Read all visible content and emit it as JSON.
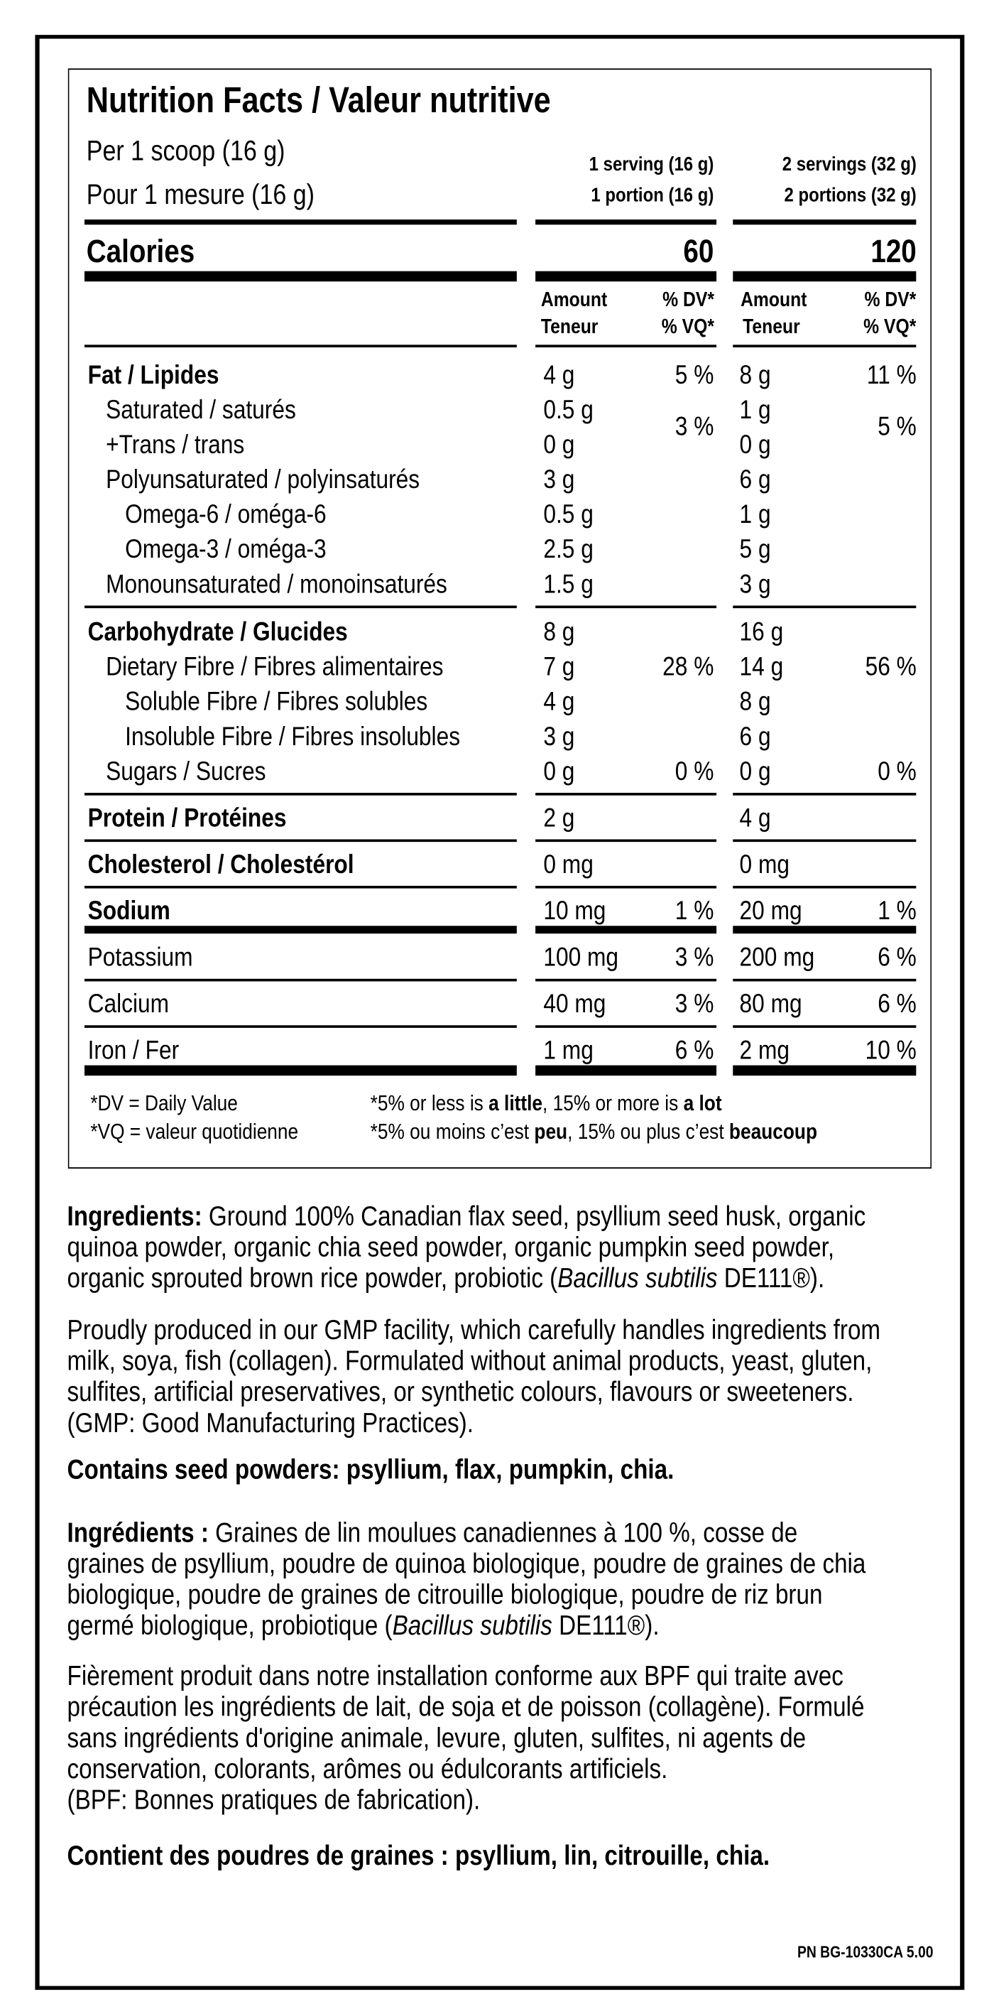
{
  "nutrition_facts": {
    "title": "Nutrition Facts / Valeur nutritive",
    "serving_size_en": "Per 1 scoop (16 g)",
    "serving_size_fr": "Pour 1 mesure (16 g)",
    "columns": [
      {
        "serving_en": "1 serving (16 g)",
        "serving_fr": "1 portion (16 g)",
        "calories": "60",
        "amount_en": "Amount",
        "amount_fr": "Teneur",
        "dv_en": "% DV*",
        "dv_fr": "% VQ*"
      },
      {
        "serving_en": "2 servings (32 g)",
        "serving_fr": "2 portions (32 g)",
        "calories": "120",
        "amount_en": "Amount",
        "amount_fr": "Teneur",
        "dv_en": "% DV*",
        "dv_fr": "% VQ*"
      }
    ],
    "calories_label": "Calories",
    "rows": [
      {
        "label": "Fat / Lipides",
        "level": 0,
        "bold": true,
        "a1": "4 g",
        "d1": "5 %",
        "a2": "8 g",
        "d2": "11 %"
      },
      {
        "label": "Saturated / saturés",
        "level": 1,
        "a1": "0.5 g",
        "d1": "3 %",
        "a2": "1 g",
        "d2": "5 %",
        "dv_spans_next": true
      },
      {
        "label": "+Trans / trans",
        "level": 1,
        "a1": "0 g",
        "d1": "",
        "a2": "0 g",
        "d2": ""
      },
      {
        "label": "Polyunsaturated / polyinsaturés",
        "level": 1,
        "a1": "3 g",
        "d1": "",
        "a2": "6 g",
        "d2": ""
      },
      {
        "label": "Omega-6 / oméga-6",
        "level": 2,
        "a1": "0.5 g",
        "d1": "",
        "a2": "1 g",
        "d2": ""
      },
      {
        "label": "Omega-3 / oméga-3",
        "level": 2,
        "a1": "2.5 g",
        "d1": "",
        "a2": "5 g",
        "d2": ""
      },
      {
        "label": "Monounsaturated / monoinsaturés",
        "level": 1,
        "a1": "1.5 g",
        "d1": "",
        "a2": "3 g",
        "d2": ""
      },
      {
        "label": "Carbohydrate / Glucides",
        "level": 0,
        "bold": true,
        "a1": "8 g",
        "d1": "",
        "a2": "16 g",
        "d2": ""
      },
      {
        "label": "Dietary Fibre / Fibres alimentaires",
        "level": 1,
        "a1": "7 g",
        "d1": "28 %",
        "a2": "14 g",
        "d2": "56 %"
      },
      {
        "label": "Soluble Fibre / Fibres solubles",
        "level": 2,
        "a1": "4 g",
        "d1": "",
        "a2": "8 g",
        "d2": ""
      },
      {
        "label": "Insoluble Fibre / Fibres insolubles",
        "level": 2,
        "a1": "3 g",
        "d1": "",
        "a2": "6 g",
        "d2": ""
      },
      {
        "label": "Sugars / Sucres",
        "level": 1,
        "a1": "0 g",
        "d1": "0 %",
        "a2": "0 g",
        "d2": "0 %"
      },
      {
        "label": "Protein / Protéines",
        "level": 0,
        "bold": true,
        "a1": "2 g",
        "d1": "",
        "a2": "4 g",
        "d2": ""
      },
      {
        "label": "Cholesterol / Cholestérol",
        "level": 0,
        "bold": true,
        "a1": "0 mg",
        "d1": "",
        "a2": "0 mg",
        "d2": ""
      },
      {
        "label": "Sodium",
        "level": 0,
        "bold": true,
        "a1": "10 mg",
        "d1": "1 %",
        "a2": "20 mg",
        "d2": "1 %"
      },
      {
        "label": "Potassium",
        "level": 0,
        "a1": "100 mg",
        "d1": "3 %",
        "a2": "200 mg",
        "d2": "6 %"
      },
      {
        "label": "Calcium",
        "level": 0,
        "a1": "40 mg",
        "d1": "3 %",
        "a2": "80 mg",
        "d2": "6 %"
      },
      {
        "label": "Iron / Fer",
        "level": 0,
        "a1": "1 mg",
        "d1": "6 %",
        "a2": "2 mg",
        "d2": "10 %"
      }
    ],
    "footnotes": {
      "dv_def": "*DV = Daily Value",
      "vq_def": "*VQ = valeur quotidienne",
      "en": [
        {
          "t": "*5% or less is "
        },
        {
          "t": "a little",
          "b": true
        },
        {
          "t": ", 15% or more is "
        },
        {
          "t": "a lot",
          "b": true
        }
      ],
      "fr": [
        {
          "t": "*5% ou moins c’est "
        },
        {
          "t": "peu",
          "b": true
        },
        {
          "t": ", 15% ou plus c’est "
        },
        {
          "t": "beaucoup",
          "b": true
        }
      ]
    }
  },
  "paragraphs": [
    {
      "name": "ingredients-en",
      "lines": [
        [
          {
            "t": "Ingredients:",
            "b": true
          },
          {
            "t": " Ground 100% Canadian flax seed, psyllium seed husk, organic"
          }
        ],
        [
          {
            "t": "quinoa powder, organic chia seed powder, organic pumpkin seed powder,"
          }
        ],
        [
          {
            "t": "organic sprouted brown rice powder, probiotic ("
          },
          {
            "t": "Bacillus subtilis",
            "i": true
          },
          {
            "t": " DE111®)."
          }
        ]
      ]
    },
    {
      "name": "facility-en",
      "lines": [
        [
          {
            "t": "Proudly produced in our GMP facility, which carefully handles ingredients from"
          }
        ],
        [
          {
            "t": "milk, soya, fish (collagen). Formulated without animal products, yeast, gluten,"
          }
        ],
        [
          {
            "t": "sulfites, artificial preservatives, or synthetic colours, flavours or sweeteners."
          }
        ],
        [
          {
            "t": "(GMP: Good Manufacturing Practices)."
          }
        ]
      ]
    },
    {
      "name": "allergen-en",
      "lines": [
        [
          {
            "t": "Contains seed powders: psyllium, flax, pumpkin, chia.",
            "b": true
          }
        ]
      ]
    },
    {
      "name": "ingredients-fr",
      "lines": [
        [
          {
            "t": "Ingrédients :",
            "b": true
          },
          {
            "t": " Graines de lin moulues canadiennes à 100 %, cosse de"
          }
        ],
        [
          {
            "t": "graines de psyllium, poudre de quinoa biologique, poudre de graines de chia"
          }
        ],
        [
          {
            "t": "biologique, poudre de graines de citrouille biologique, poudre de riz brun"
          }
        ],
        [
          {
            "t": "germé biologique, probiotique ("
          },
          {
            "t": "Bacillus subtilis",
            "i": true
          },
          {
            "t": " DE111®)."
          }
        ]
      ]
    },
    {
      "name": "facility-fr",
      "lines": [
        [
          {
            "t": "Fièrement produit dans notre installation conforme aux BPF qui traite avec"
          }
        ],
        [
          {
            "t": "précaution les ingrédients de lait, de soja et de poisson (collagène). Formulé"
          }
        ],
        [
          {
            "t": "sans ingrédients d'origine animale, levure, gluten, sulfites, ni agents de"
          }
        ],
        [
          {
            "t": "conservation, colorants, arômes ou édulcorants artificiels."
          }
        ],
        [
          {
            "t": "(BPF: Bonnes pratiques de fabrication)."
          }
        ]
      ]
    },
    {
      "name": "allergen-fr",
      "lines": [
        [
          {
            "t": "Contient des poudres de graines : psyllium, lin, citrouille, chia.",
            "b": true
          }
        ]
      ]
    }
  ],
  "part_number": "PN BG-10330CA  5.00"
}
